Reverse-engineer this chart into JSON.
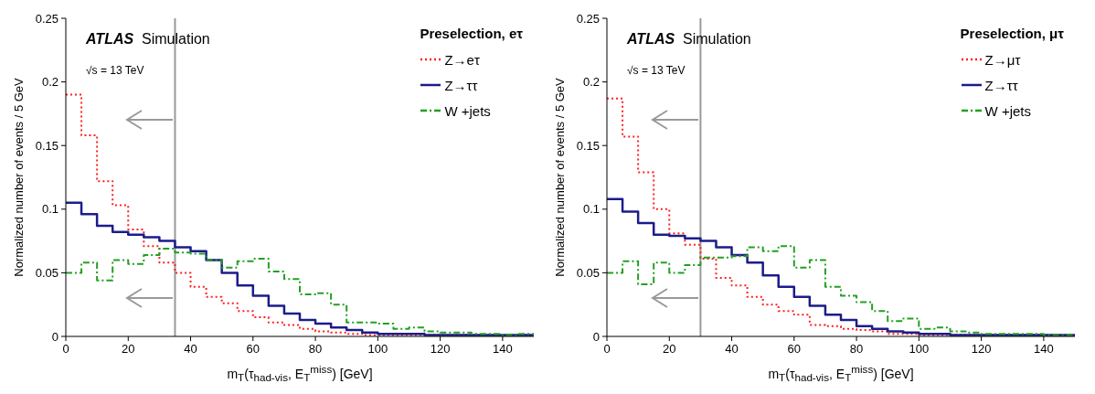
{
  "chart_data": [
    {
      "type": "histogram",
      "xlabel": "m$_{T}$(τ$_{had-vis}$, E$_{T}$$^{miss}$) [GeV]",
      "ylabel": "Normalized number of events / 5 GeV",
      "legend_title": "Preselection, eτ",
      "legend": "top right",
      "bins": [
        0,
        5,
        10,
        15,
        20,
        25,
        30,
        35,
        40,
        45,
        50,
        55,
        60,
        65,
        70,
        75,
        80,
        85,
        90,
        95,
        100,
        105,
        110,
        115,
        120,
        125,
        130,
        135,
        140,
        145,
        150
      ],
      "xlim": [
        0,
        150
      ],
      "xticks": [
        0,
        20,
        40,
        60,
        80,
        100,
        120,
        140
      ],
      "ylim": [
        0,
        0.25
      ],
      "yticks": [
        0,
        0.05,
        0.1,
        0.15,
        0.2,
        0.25
      ],
      "series": [
        {
          "name": "Z→eτ",
          "color": "#ff2020",
          "line_style": "dotted",
          "values": [
            0.19,
            0.158,
            0.122,
            0.103,
            0.084,
            0.071,
            0.058,
            0.05,
            0.039,
            0.031,
            0.026,
            0.02,
            0.015,
            0.011,
            0.009,
            0.006,
            0.004,
            0.003,
            0.002,
            0.001,
            0.001,
            0.001,
            0.001,
            0.001,
            0.001,
            0.001,
            0.001,
            0.001,
            0.001,
            0.001
          ]
        },
        {
          "name": "Z→ττ",
          "color": "#1c1c8a",
          "line_style": "solid",
          "values": [
            0.105,
            0.096,
            0.087,
            0.082,
            0.08,
            0.078,
            0.075,
            0.07,
            0.067,
            0.06,
            0.05,
            0.04,
            0.032,
            0.024,
            0.018,
            0.013,
            0.01,
            0.007,
            0.005,
            0.003,
            0.002,
            0.002,
            0.002,
            0.001,
            0.001,
            0.001,
            0.001,
            0.001,
            0.001,
            0.001
          ]
        },
        {
          "name": "W +jets",
          "color": "#22a022",
          "line_style": "dashed",
          "values": [
            0.05,
            0.058,
            0.044,
            0.06,
            0.057,
            0.064,
            0.069,
            0.066,
            0.065,
            0.06,
            0.054,
            0.059,
            0.061,
            0.051,
            0.045,
            0.033,
            0.034,
            0.025,
            0.011,
            0.011,
            0.01,
            0.006,
            0.007,
            0.004,
            0.003,
            0.003,
            0.002,
            0.002,
            0.001,
            0.002
          ]
        }
      ],
      "ref_lines": [
        {
          "axis": "x",
          "value": 35,
          "color": "#999999"
        }
      ],
      "annotations": [
        "ATLAS",
        "Simulation",
        "√s = 13 TeV"
      ]
    },
    {
      "type": "histogram",
      "xlabel": "m$_{T}$(τ$_{had-vis}$, E$_{T}$$^{miss}$) [GeV]",
      "ylabel": "Normalized number of events / 5 GeV",
      "legend_title": "Preselection, μτ",
      "legend": "top right",
      "bins": [
        0,
        5,
        10,
        15,
        20,
        25,
        30,
        35,
        40,
        45,
        50,
        55,
        60,
        65,
        70,
        75,
        80,
        85,
        90,
        95,
        100,
        105,
        110,
        115,
        120,
        125,
        130,
        135,
        140,
        145,
        150
      ],
      "xlim": [
        0,
        150
      ],
      "xticks": [
        0,
        20,
        40,
        60,
        80,
        100,
        120,
        140
      ],
      "ylim": [
        0,
        0.25
      ],
      "yticks": [
        0,
        0.05,
        0.1,
        0.15,
        0.2,
        0.25
      ],
      "series": [
        {
          "name": "Z→μτ",
          "color": "#ff2020",
          "line_style": "dotted",
          "values": [
            0.187,
            0.157,
            0.129,
            0.1,
            0.081,
            0.072,
            0.061,
            0.046,
            0.04,
            0.031,
            0.025,
            0.02,
            0.017,
            0.009,
            0.008,
            0.006,
            0.005,
            0.004,
            0.002,
            0.002,
            0.001,
            0.001,
            0.001,
            0.001,
            0.001,
            0.001,
            0.001,
            0.001,
            0.001,
            0.001
          ]
        },
        {
          "name": "Z→ττ",
          "color": "#1c1c8a",
          "line_style": "solid",
          "values": [
            0.108,
            0.098,
            0.089,
            0.08,
            0.079,
            0.077,
            0.075,
            0.07,
            0.064,
            0.058,
            0.048,
            0.039,
            0.031,
            0.024,
            0.017,
            0.013,
            0.008,
            0.006,
            0.004,
            0.003,
            0.002,
            0.002,
            0.001,
            0.001,
            0.001,
            0.001,
            0.001,
            0.001,
            0.001,
            0.001
          ]
        },
        {
          "name": "W +jets",
          "color": "#22a022",
          "line_style": "dashed",
          "values": [
            0.05,
            0.059,
            0.041,
            0.058,
            0.05,
            0.056,
            0.062,
            0.062,
            0.063,
            0.07,
            0.067,
            0.071,
            0.054,
            0.06,
            0.039,
            0.032,
            0.027,
            0.02,
            0.012,
            0.014,
            0.006,
            0.007,
            0.004,
            0.003,
            0.002,
            0.002,
            0.002,
            0.002,
            0.001,
            0.001
          ]
        }
      ],
      "ref_lines": [
        {
          "axis": "x",
          "value": 30,
          "color": "#999999"
        }
      ],
      "annotations": [
        "ATLAS",
        "Simulation",
        "√s = 13 TeV"
      ]
    }
  ]
}
